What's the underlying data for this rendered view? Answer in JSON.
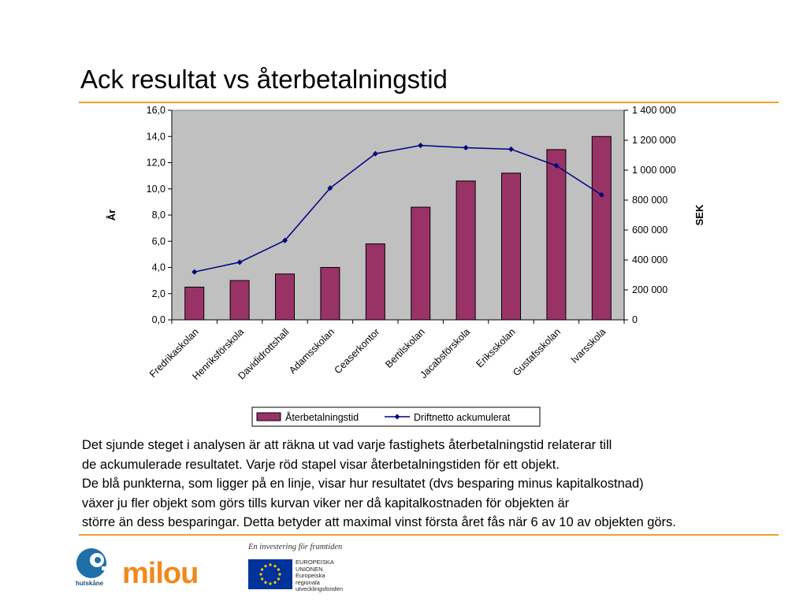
{
  "slide": {
    "title": "Ack resultat vs återbetalningstid",
    "body_lines": [
      "Det sjunde steget i analysen är att räkna ut vad varje fastighets återbetalningstid relaterar till",
      "de ackumulerade resultatet. Varje röd stapel visar återbetalningstiden för ett objekt.",
      "De blå punkterna, som ligger på en linje, visar hur resultatet (dvs besparing minus kapitalkostnad)",
      "växer ju fler objekt som görs tills kurvan viker ner då kapitalkostnaden för objekten är",
      "större än dess besparingar. Detta betyder att maximal vinst första året fås när 6 av 10 av objekten görs."
    ],
    "accent_color": "#f0a030"
  },
  "footer": {
    "slogan": "En investering för framtiden",
    "hutskane_label": "hutskåne",
    "milou_label": "milou",
    "eu_lines": [
      "EUROPEISKA",
      "UNIONEN",
      "Europeiska",
      "regionala",
      "utvecklingsfonden"
    ]
  },
  "chart_data": {
    "type": "bar",
    "categories": [
      "Fredrikaskolan",
      "Henriksförskola",
      "Davididrottshall",
      "Adamsskolan",
      "Ceaserkontor",
      "Bertilskolan",
      "Jacabsförskola",
      "Eriksskolan",
      "Gustafsskolan",
      "Ivarsskola"
    ],
    "series": [
      {
        "name": "Återbetalningstid",
        "type": "bar",
        "axis": "left",
        "color": "#993366",
        "values": [
          2.5,
          3.0,
          3.5,
          4.0,
          5.8,
          8.6,
          10.6,
          11.2,
          13.0,
          14.0
        ]
      },
      {
        "name": "Driftnetto ackumulerat",
        "type": "line",
        "axis": "right",
        "color": "#000080",
        "values": [
          320000,
          385000,
          530000,
          880000,
          1110000,
          1165000,
          1150000,
          1140000,
          1030000,
          835000
        ]
      }
    ],
    "ylabel": "År",
    "y2label": "SEK",
    "ylim": [
      0,
      16
    ],
    "y2lim": [
      0,
      1400000
    ],
    "yticks": [
      "0,0",
      "2,0",
      "4,0",
      "6,0",
      "8,0",
      "10,0",
      "12,0",
      "14,0",
      "16,0"
    ],
    "y2ticks": [
      "0",
      "200 000",
      "400 000",
      "600 000",
      "800 000",
      "1 000 000",
      "1 200 000",
      "1 400 000"
    ],
    "plot_background": "#c0c0c0",
    "legend_position": "bottom",
    "grid": false
  }
}
